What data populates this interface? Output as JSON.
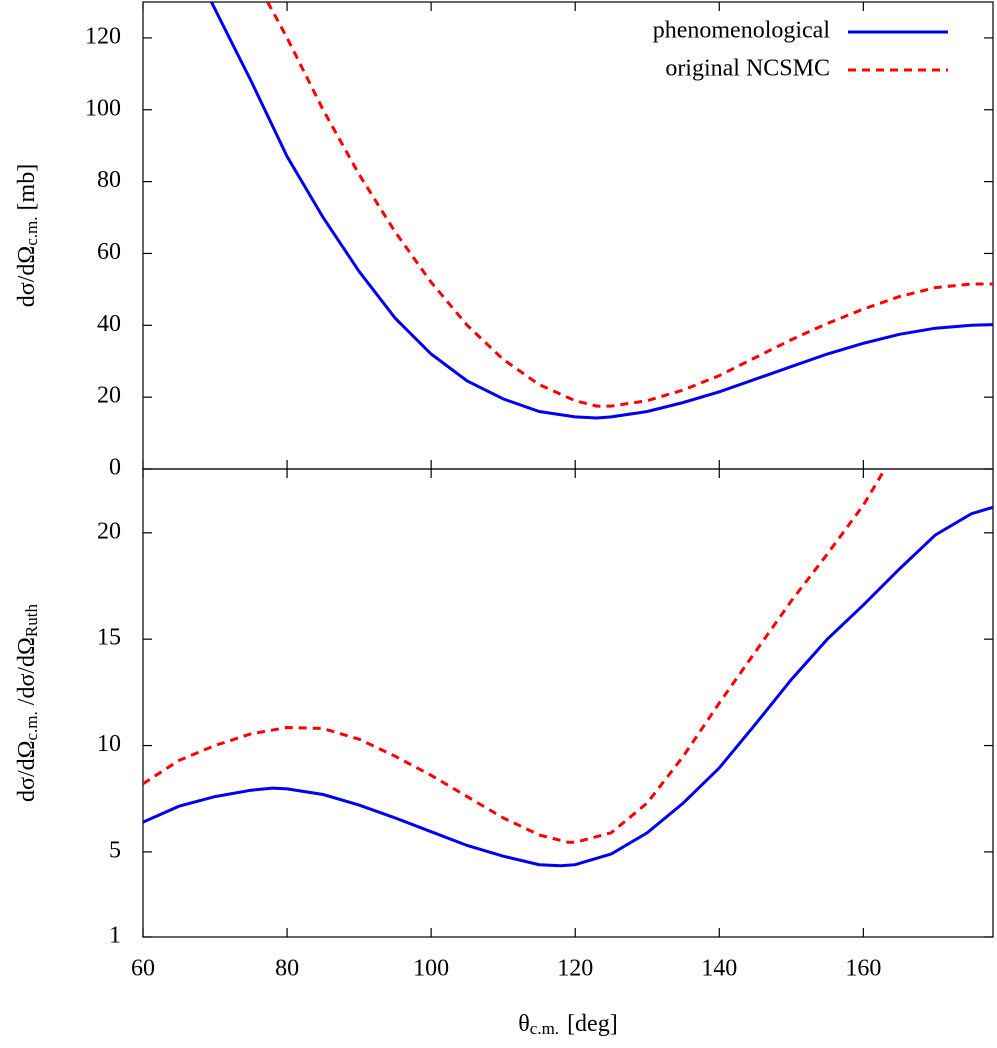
{
  "chart_data": [
    {
      "type": "line",
      "ylabel": [
        "dσ/dΩ",
        "c.m.",
        "[mb]"
      ],
      "xlim": [
        60,
        178
      ],
      "xticks": [
        60,
        80,
        100,
        120,
        140,
        160
      ],
      "ylim": [
        0,
        130
      ],
      "yticks": [
        0,
        20,
        40,
        60,
        80,
        100,
        120
      ],
      "legend": "upper right",
      "series": [
        {
          "name": "phenomenological",
          "color": "#0000ee",
          "style": "solid",
          "x": [
            69.5,
            72,
            75,
            80,
            85,
            90,
            95,
            100,
            105,
            110,
            115,
            120,
            123,
            125,
            130,
            135,
            140,
            145,
            150,
            155,
            160,
            165,
            170,
            175,
            178
          ],
          "values": [
            130,
            120,
            108,
            87,
            70,
            55,
            42,
            32,
            24.5,
            19.5,
            16,
            14.5,
            14.2,
            14.5,
            16,
            18.5,
            21.5,
            25,
            28.5,
            32,
            35,
            37.5,
            39.2,
            40,
            40.2
          ]
        },
        {
          "name": "original NCSMC",
          "color": "#ff0000",
          "style": "dashed",
          "x": [
            77.3,
            80,
            85,
            90,
            95,
            100,
            105,
            110,
            115,
            120,
            123,
            125,
            130,
            135,
            140,
            145,
            150,
            155,
            160,
            165,
            170,
            175,
            178
          ],
          "values": [
            130,
            120,
            100,
            82,
            66,
            52,
            40,
            30.5,
            23.5,
            19,
            17.5,
            17.5,
            19,
            22,
            26,
            31,
            36,
            40.5,
            44.5,
            48,
            50.5,
            51.5,
            51.5
          ]
        }
      ]
    },
    {
      "type": "line",
      "ylabel": [
        "dσ/dΩ",
        "c.m.",
        "/dσ/dΩ",
        "Ruth"
      ],
      "xlabel": [
        "θ",
        "c.m.",
        "[deg]"
      ],
      "xlim": [
        60,
        178
      ],
      "xticks": [
        60,
        80,
        100,
        120,
        140,
        160
      ],
      "ylim": [
        1,
        23
      ],
      "yticks": [
        1,
        5,
        10,
        15,
        20
      ],
      "series": [
        {
          "color": "#0000ee",
          "style": "solid",
          "x": [
            60,
            65,
            70,
            75,
            78,
            80,
            85,
            90,
            95,
            100,
            105,
            110,
            115,
            118,
            120,
            125,
            130,
            135,
            140,
            145,
            150,
            155,
            160,
            165,
            170,
            175,
            178
          ],
          "values": [
            6.4,
            7.15,
            7.6,
            7.9,
            8.0,
            7.96,
            7.7,
            7.2,
            6.6,
            5.95,
            5.3,
            4.8,
            4.4,
            4.35,
            4.4,
            4.9,
            5.9,
            7.3,
            8.95,
            11.0,
            13.1,
            15.0,
            16.6,
            18.3,
            19.9,
            20.9,
            21.2
          ]
        },
        {
          "color": "#ff0000",
          "style": "dashed",
          "x": [
            60,
            65,
            70,
            75,
            80,
            85,
            90,
            95,
            100,
            105,
            110,
            115,
            119,
            120,
            125,
            130,
            135,
            140,
            145,
            150,
            155,
            160,
            163
          ],
          "values": [
            8.2,
            9.3,
            10.0,
            10.55,
            10.85,
            10.8,
            10.3,
            9.5,
            8.6,
            7.6,
            6.6,
            5.8,
            5.45,
            5.45,
            5.9,
            7.3,
            9.5,
            12.0,
            14.4,
            16.8,
            19.0,
            21.3,
            23
          ]
        }
      ]
    }
  ]
}
